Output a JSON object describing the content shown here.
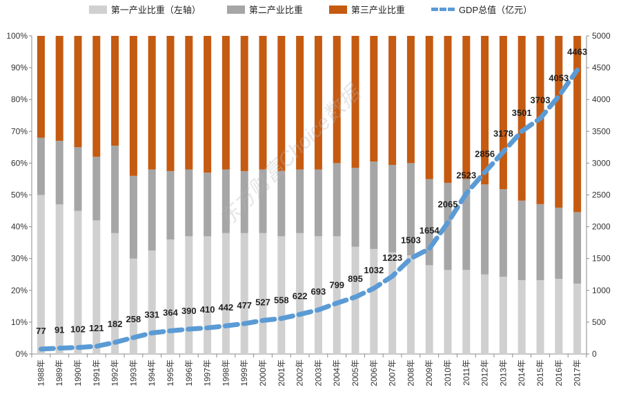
{
  "chart_data": {
    "type": "bar",
    "stacked": true,
    "categories": [
      "1988年",
      "1989年",
      "1990年",
      "1991年",
      "1992年",
      "1993年",
      "1994年",
      "1995年",
      "1996年",
      "1997年",
      "1998年",
      "1999年",
      "2000年",
      "2001年",
      "2002年",
      "2003年",
      "2004年",
      "2005年",
      "2006年",
      "2007年",
      "2008年",
      "2009年",
      "2010年",
      "2011年",
      "2012年",
      "2013年",
      "2014年",
      "2015年",
      "2016年",
      "2017年"
    ],
    "series": [
      {
        "name": "第一产业比重（左轴）",
        "axis": "left",
        "color": "#d0d0d0",
        "values": [
          50,
          47,
          45,
          42,
          38,
          30,
          32.5,
          36,
          37,
          37,
          38,
          38,
          38,
          37,
          38,
          37,
          37,
          33.7,
          33,
          32,
          31,
          27.9,
          26.4,
          26.4,
          25,
          24.3,
          23.2,
          23.2,
          23.6,
          22.1
        ]
      },
      {
        "name": "第二产业比重",
        "axis": "left",
        "color": "#a6a6a6",
        "values": [
          18,
          20,
          20,
          20,
          27.5,
          26,
          25.5,
          21.5,
          21,
          20,
          20,
          19.5,
          20,
          20.5,
          20,
          21,
          23,
          24.8,
          27.5,
          27.4,
          29,
          27.1,
          27.4,
          28.6,
          28.3,
          27.5,
          25,
          23.9,
          22.4,
          22.5
        ]
      },
      {
        "name": "第三产业比重",
        "axis": "left",
        "color": "#c55a11",
        "values": [
          32,
          33,
          35,
          38,
          34.5,
          44,
          42,
          42.5,
          42,
          43,
          42,
          42.5,
          42,
          42.5,
          42,
          42,
          40,
          41.5,
          39.5,
          40.6,
          40,
          45,
          46.2,
          45,
          46.7,
          48.2,
          51.8,
          52.9,
          54,
          55.4
        ]
      },
      {
        "name": "GDP总值（亿元）",
        "axis": "right",
        "type": "line",
        "style": "dashed",
        "color": "#5b9bd5",
        "values": [
          77,
          91,
          102,
          121,
          182,
          258,
          331,
          364,
          390,
          410,
          442,
          477,
          527,
          558,
          622,
          693,
          799,
          895,
          1032,
          1223,
          1503,
          1654,
          2065,
          2523,
          2856,
          3178,
          3501,
          3703,
          4053,
          4463
        ]
      }
    ],
    "left_axis": {
      "ylim": [
        0,
        100
      ],
      "ticks": [
        "0%",
        "10%",
        "20%",
        "30%",
        "40%",
        "50%",
        "60%",
        "70%",
        "80%",
        "90%",
        "100%"
      ]
    },
    "right_axis": {
      "ylim": [
        0,
        5000
      ],
      "ticks": [
        "0",
        "500",
        "1000",
        "1500",
        "2000",
        "2500",
        "3000",
        "3500",
        "4000",
        "4500",
        "5000"
      ]
    },
    "legend_position": "top",
    "watermark": "东方财富Choice数据"
  }
}
